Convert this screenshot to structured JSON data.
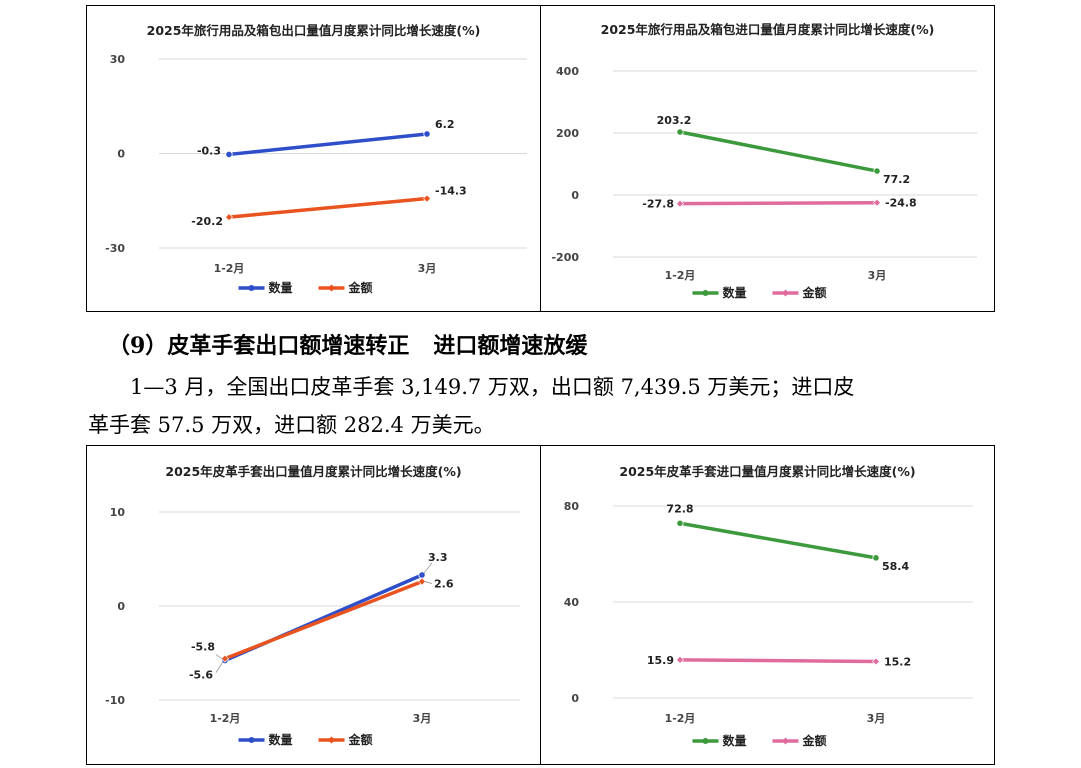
{
  "section": {
    "number": "（9）",
    "heading_part1": "皮革手套出口额增速转正",
    "heading_part2": "进口额增速放缓",
    "paragraph_line1": "1—3 月，全国出口皮革手套 3,149.7 万双，出口额 7,439.5 万美元；进口皮",
    "paragraph_line2": "革手套 57.5 万双，进口额 282.4 万美元。"
  },
  "chart_data": [
    {
      "type": "line",
      "title": "2025年旅行用品及箱包出口量值月度累计同比增长速度(%)",
      "categories": [
        "1-2月",
        "3月"
      ],
      "ylim": [
        -30,
        30
      ],
      "yticks": [
        30,
        0,
        -30
      ],
      "grid": true,
      "legend_position": "bottom",
      "series": [
        {
          "name": "数量",
          "values": [
            -0.3,
            6.2
          ],
          "color": "#2E4FC9",
          "labels": [
            "-0.3",
            "6.2"
          ]
        },
        {
          "name": "金额",
          "values": [
            -20.2,
            -14.3
          ],
          "color": "#E8531F",
          "labels": [
            "-20.2",
            "-14.3"
          ]
        }
      ]
    },
    {
      "type": "line",
      "title": "2025年旅行用品及箱包进口量值月度累计同比增长速度(%)",
      "categories": [
        "1-2月",
        "3月"
      ],
      "ylim": [
        -200,
        400
      ],
      "yticks": [
        400,
        200,
        0,
        -200
      ],
      "grid": true,
      "legend_position": "bottom",
      "series": [
        {
          "name": "数量",
          "values": [
            203.2,
            77.2
          ],
          "color": "#3C9A3C",
          "labels": [
            "203.2",
            "77.2"
          ]
        },
        {
          "name": "金额",
          "values": [
            -27.8,
            -24.8
          ],
          "color": "#E06C9F",
          "labels": [
            "-27.8",
            "-24.8"
          ]
        }
      ]
    },
    {
      "type": "line",
      "title": "2025年皮革手套出口量值月度累计同比增长速度(%)",
      "categories": [
        "1-2月",
        "3月"
      ],
      "ylim": [
        -10,
        10
      ],
      "yticks": [
        10,
        0,
        -10
      ],
      "grid": true,
      "legend_position": "bottom",
      "series": [
        {
          "name": "数量",
          "values": [
            -5.8,
            3.3
          ],
          "color": "#2E4FC9",
          "labels": [
            "-5.8",
            "3.3"
          ]
        },
        {
          "name": "金额",
          "values": [
            -5.6,
            2.6
          ],
          "color": "#E8531F",
          "labels": [
            "-5.6",
            "2.6"
          ]
        }
      ]
    },
    {
      "type": "line",
      "title": "2025年皮革手套进口量值月度累计同比增长速度(%)",
      "categories": [
        "1-2月",
        "3月"
      ],
      "ylim": [
        0,
        80
      ],
      "yticks": [
        80,
        40,
        0
      ],
      "grid": true,
      "legend_position": "bottom",
      "series": [
        {
          "name": "数量",
          "values": [
            72.8,
            58.4
          ],
          "color": "#3C9A3C",
          "labels": [
            "72.8",
            "58.4"
          ]
        },
        {
          "name": "金额",
          "values": [
            15.9,
            15.2
          ],
          "color": "#E06C9F",
          "labels": [
            "15.9",
            "15.2"
          ]
        }
      ]
    }
  ]
}
